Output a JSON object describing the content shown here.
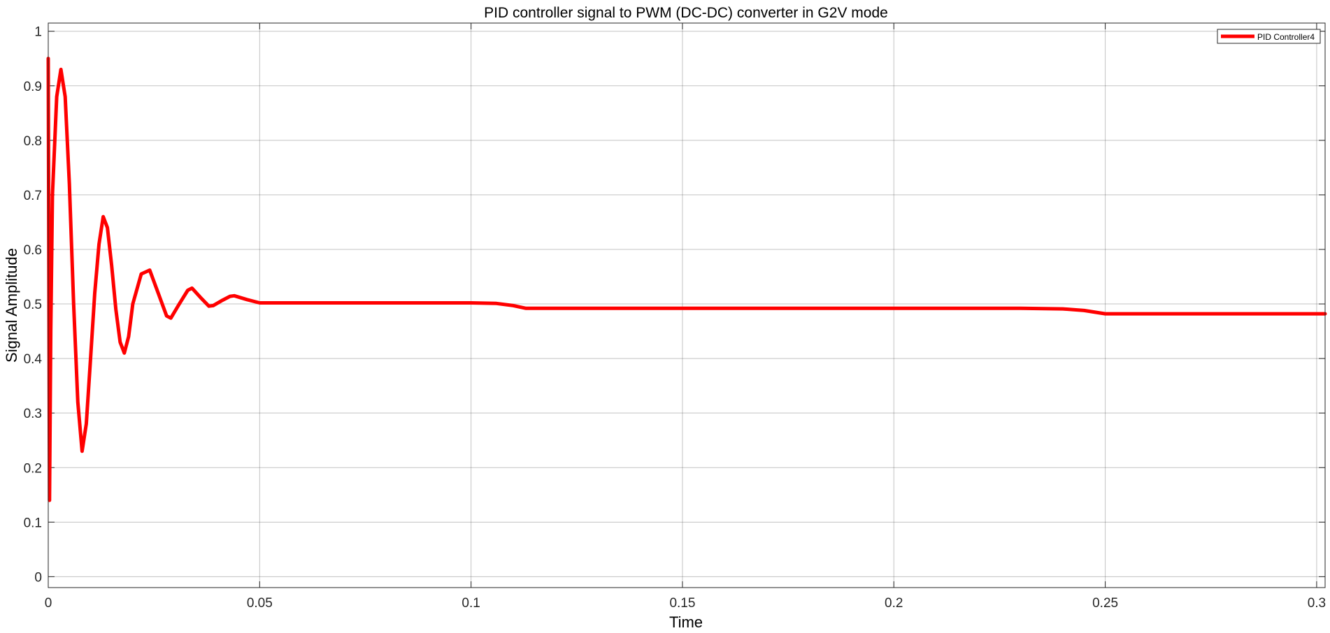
{
  "chart_data": {
    "type": "line",
    "title": "PID controller signal to PWM (DC-DC) converter in G2V mode",
    "xlabel": "Time",
    "ylabel": "Signal Amplitude",
    "xlim": [
      0,
      0.302
    ],
    "ylim": [
      -0.02,
      1.015
    ],
    "x_ticks": [
      0,
      0.05,
      0.1,
      0.15,
      0.2,
      0.25,
      0.3
    ],
    "x_tick_labels": [
      "0",
      "0.05",
      "0.1",
      "0.15",
      "0.2",
      "0.25",
      "0.3"
    ],
    "y_ticks": [
      0,
      0.1,
      0.2,
      0.3,
      0.4,
      0.5,
      0.6,
      0.7,
      0.8,
      0.9,
      1
    ],
    "y_tick_labels": [
      "0",
      "0.1",
      "0.2",
      "0.3",
      "0.4",
      "0.5",
      "0.6",
      "0.7",
      "0.8",
      "0.9",
      "1"
    ],
    "grid": true,
    "legend": {
      "position": "top-right",
      "entries": [
        "PID Controller4"
      ]
    },
    "series": [
      {
        "name": "PID Controller4",
        "color": "#ff0000",
        "x": [
          0,
          0.0003,
          0.0006,
          0.001,
          0.002,
          0.003,
          0.004,
          0.005,
          0.006,
          0.007,
          0.008,
          0.009,
          0.01,
          0.011,
          0.012,
          0.013,
          0.014,
          0.015,
          0.016,
          0.017,
          0.018,
          0.019,
          0.02,
          0.022,
          0.024,
          0.026,
          0.028,
          0.029,
          0.031,
          0.033,
          0.034,
          0.036,
          0.038,
          0.039,
          0.041,
          0.043,
          0.044,
          0.047,
          0.05,
          0.06,
          0.07,
          0.08,
          0.09,
          0.1,
          0.106,
          0.11,
          0.113,
          0.13,
          0.15,
          0.17,
          0.19,
          0.21,
          0.23,
          0.24,
          0.245,
          0.25,
          0.27,
          0.29,
          0.302
        ],
        "y": [
          0.95,
          0.14,
          0.45,
          0.7,
          0.88,
          0.93,
          0.88,
          0.72,
          0.5,
          0.32,
          0.23,
          0.28,
          0.4,
          0.52,
          0.61,
          0.66,
          0.64,
          0.57,
          0.49,
          0.43,
          0.41,
          0.44,
          0.5,
          0.555,
          0.562,
          0.52,
          0.478,
          0.474,
          0.5,
          0.525,
          0.529,
          0.512,
          0.496,
          0.497,
          0.506,
          0.514,
          0.515,
          0.508,
          0.502,
          0.502,
          0.502,
          0.502,
          0.502,
          0.502,
          0.501,
          0.497,
          0.492,
          0.492,
          0.492,
          0.492,
          0.492,
          0.492,
          0.492,
          0.491,
          0.488,
          0.482,
          0.482,
          0.482,
          0.482
        ]
      }
    ]
  }
}
